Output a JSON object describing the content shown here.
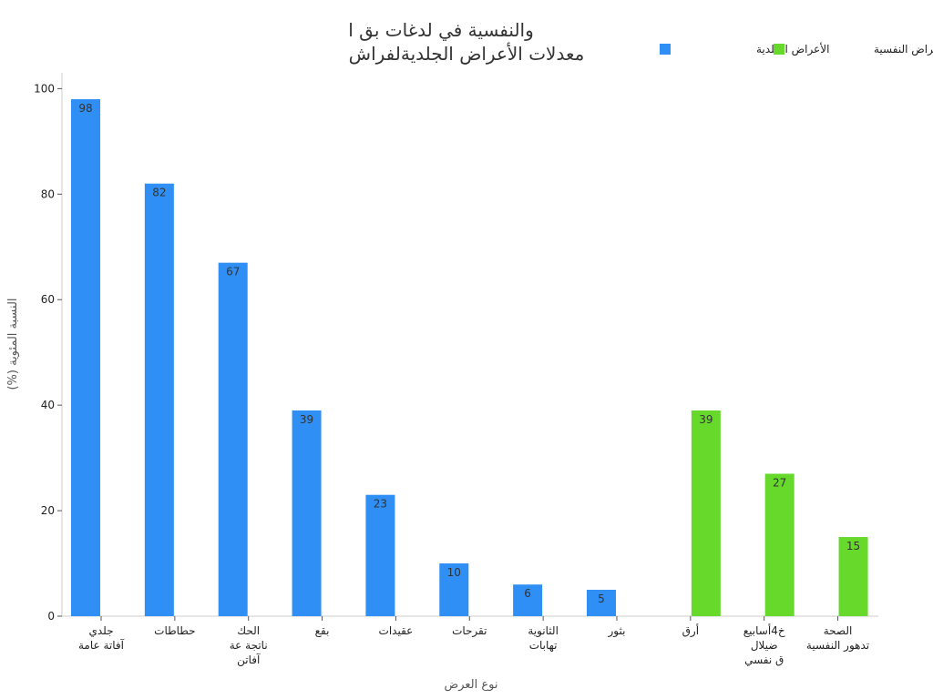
{
  "chart_data": {
    "type": "bar",
    "title_lines": [
      "والنفسية في لدغات بق ا",
      "معدلات الأعراض الجلديةلفراش"
    ],
    "xlabel": "نوع العرض",
    "ylabel": "النسبة المئوية (%)",
    "ylim": [
      0,
      103
    ],
    "yticks": [
      0,
      20,
      40,
      60,
      80,
      100
    ],
    "grid": false,
    "legend_position": "top-right",
    "categories": [
      [
        "جلدي",
        "آفاتة عامة"
      ],
      [
        "حطاطات"
      ],
      [
        "الحك",
        "ناتجة عة",
        "آفاتن"
      ],
      [
        "بقع"
      ],
      [
        "عقيدات"
      ],
      [
        "تقرحات"
      ],
      [
        "الثانوية",
        "تهابات"
      ],
      [
        "بثور"
      ],
      [
        "أرق"
      ],
      [
        "خ4أسابيع",
        "ضيلال",
        "ق نفسي"
      ],
      [
        "الصحة",
        "تدهور النفسية"
      ]
    ],
    "series": [
      {
        "name": "الأعراض الجلدية",
        "color": "#2f8ff5",
        "values": [
          98,
          82,
          67,
          39,
          23,
          10,
          6,
          5,
          null,
          null,
          null
        ]
      },
      {
        "name": "الأعراض النفسية",
        "color": "#66d92b",
        "values": [
          null,
          null,
          null,
          null,
          null,
          null,
          null,
          null,
          39,
          27,
          15
        ]
      }
    ]
  }
}
